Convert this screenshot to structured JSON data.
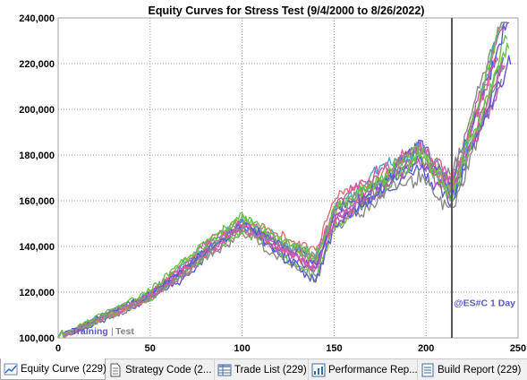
{
  "chart_data": {
    "type": "line",
    "title": "Equity Curves for Stress Test (9/4/2000 to 8/26/2022)",
    "xlabel": "",
    "ylabel": "",
    "xlim": [
      0,
      250
    ],
    "ylim": [
      100000,
      240000
    ],
    "x_ticks": [
      0,
      50,
      100,
      150,
      200,
      250
    ],
    "y_ticks": [
      100000,
      120000,
      140000,
      160000,
      180000,
      200000,
      220000,
      240000
    ],
    "x_tick_labels": [
      "0",
      "50",
      "100",
      "150",
      "200",
      "250"
    ],
    "y_tick_labels": [
      "100,000",
      "120,000",
      "140,000",
      "160,000",
      "180,000",
      "200,000",
      "220,000",
      "240,000"
    ],
    "grid": true,
    "split_x": 214,
    "split_labels": {
      "training": "Training",
      "separator": "|",
      "test": "Test"
    },
    "annotation": "@ES#C 1 Day",
    "key_points": [
      [
        0,
        100000
      ],
      [
        50,
        118000
      ],
      [
        100,
        150000
      ],
      [
        140,
        133000
      ],
      [
        150,
        155000
      ],
      [
        197,
        182000
      ],
      [
        214,
        165000
      ],
      [
        245,
        235000
      ]
    ],
    "series_note_visible": false,
    "colors": [
      "#5a5ad6",
      "#d45aa8",
      "#8a8a8a",
      "#6bc24a",
      "#3fa8c9",
      "#b35ab0",
      "#e07070",
      "#5a5ad6",
      "#d45aa8",
      "#6bc24a"
    ]
  },
  "tabs": [
    {
      "label": "Equity Curve (229)",
      "icon": "line-chart-icon"
    },
    {
      "label": "Strategy Code (2...",
      "icon": "document-icon"
    },
    {
      "label": "Trade List (229)",
      "icon": "table-icon"
    },
    {
      "label": "Performance Rep...",
      "icon": "report-icon"
    },
    {
      "label": "Build Report (229)",
      "icon": "list-icon"
    }
  ]
}
